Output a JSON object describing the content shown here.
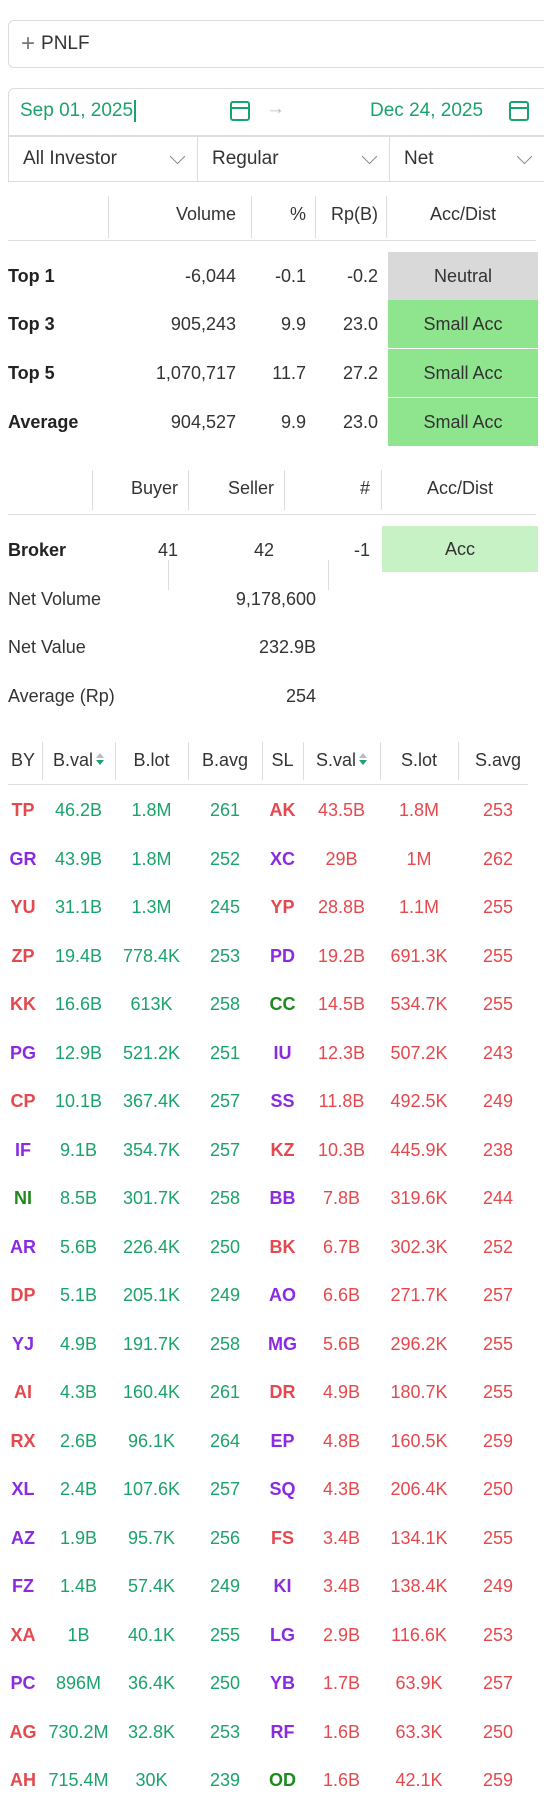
{
  "search": {
    "value": "PNLF",
    "plus_icon": "plus-icon"
  },
  "dates": {
    "start": "Sep 01, 2025",
    "end": "Dec 24, 2025"
  },
  "filters": [
    "All Investor",
    "Regular",
    "Net"
  ],
  "summary": {
    "headers": [
      "Volume",
      "%",
      "Rp(B)",
      "Acc/Dist"
    ],
    "rows": [
      {
        "label": "Top 1",
        "volume": "-6,044",
        "pct": "-0.1",
        "rp": "-0.2",
        "acc": "Neutral",
        "color": "#d9d9d9"
      },
      {
        "label": "Top 3",
        "volume": "905,243",
        "pct": "9.9",
        "rp": "23.0",
        "acc": "Small Acc",
        "color": "#8ee58e"
      },
      {
        "label": "Top 5",
        "volume": "1,070,717",
        "pct": "11.7",
        "rp": "27.2",
        "acc": "Small Acc",
        "color": "#8ee58e"
      },
      {
        "label": "Average",
        "volume": "904,527",
        "pct": "9.9",
        "rp": "23.0",
        "acc": "Small Acc",
        "color": "#8ee58e"
      }
    ]
  },
  "broker_summary": {
    "headers": [
      "Buyer",
      "Seller",
      "#",
      "Acc/Dist"
    ],
    "broker": {
      "label": "Broker",
      "buyer": "41",
      "seller": "42",
      "count": "-1",
      "acc": "Acc",
      "color": "#c6f2c6"
    },
    "net_volume": {
      "label": "Net Volume",
      "value": "9,178,600"
    },
    "net_value": {
      "label": "Net Value",
      "value": "232.9B"
    },
    "average": {
      "label": "Average (Rp)",
      "value": "254"
    }
  },
  "broker_table": {
    "headers": [
      "BY",
      "B.val",
      "B.lot",
      "B.avg",
      "SL",
      "S.val",
      "S.lot",
      "S.avg"
    ],
    "rows": [
      {
        "by": "TP",
        "by_color": "#e5484d",
        "bval": "46.2B",
        "blot": "1.8M",
        "bavg": "261",
        "sl": "AK",
        "sl_color": "#e5484d",
        "sval": "43.5B",
        "slot": "1.8M",
        "savg": "253"
      },
      {
        "by": "GR",
        "by_color": "#8a2be2",
        "bval": "43.9B",
        "blot": "1.8M",
        "bavg": "252",
        "sl": "XC",
        "sl_color": "#8a2be2",
        "sval": "29B",
        "slot": "1M",
        "savg": "262"
      },
      {
        "by": "YU",
        "by_color": "#e5484d",
        "bval": "31.1B",
        "blot": "1.3M",
        "bavg": "245",
        "sl": "YP",
        "sl_color": "#e5484d",
        "sval": "28.8B",
        "slot": "1.1M",
        "savg": "255"
      },
      {
        "by": "ZP",
        "by_color": "#e5484d",
        "bval": "19.4B",
        "blot": "778.4K",
        "bavg": "253",
        "sl": "PD",
        "sl_color": "#8a2be2",
        "sval": "19.2B",
        "slot": "691.3K",
        "savg": "255"
      },
      {
        "by": "KK",
        "by_color": "#e5484d",
        "bval": "16.6B",
        "blot": "613K",
        "bavg": "258",
        "sl": "CC",
        "sl_color": "#1e8a1e",
        "sval": "14.5B",
        "slot": "534.7K",
        "savg": "255"
      },
      {
        "by": "PG",
        "by_color": "#8a2be2",
        "bval": "12.9B",
        "blot": "521.2K",
        "bavg": "251",
        "sl": "IU",
        "sl_color": "#8a2be2",
        "sval": "12.3B",
        "slot": "507.2K",
        "savg": "243"
      },
      {
        "by": "CP",
        "by_color": "#e5484d",
        "bval": "10.1B",
        "blot": "367.4K",
        "bavg": "257",
        "sl": "SS",
        "sl_color": "#8a2be2",
        "sval": "11.8B",
        "slot": "492.5K",
        "savg": "249"
      },
      {
        "by": "IF",
        "by_color": "#8a2be2",
        "bval": "9.1B",
        "blot": "354.7K",
        "bavg": "257",
        "sl": "KZ",
        "sl_color": "#e5484d",
        "sval": "10.3B",
        "slot": "445.9K",
        "savg": "238"
      },
      {
        "by": "NI",
        "by_color": "#1e8a1e",
        "bval": "8.5B",
        "blot": "301.7K",
        "bavg": "258",
        "sl": "BB",
        "sl_color": "#8a2be2",
        "sval": "7.8B",
        "slot": "319.6K",
        "savg": "244"
      },
      {
        "by": "AR",
        "by_color": "#8a2be2",
        "bval": "5.6B",
        "blot": "226.4K",
        "bavg": "250",
        "sl": "BK",
        "sl_color": "#e5484d",
        "sval": "6.7B",
        "slot": "302.3K",
        "savg": "252"
      },
      {
        "by": "DP",
        "by_color": "#e5484d",
        "bval": "5.1B",
        "blot": "205.1K",
        "bavg": "249",
        "sl": "AO",
        "sl_color": "#8a2be2",
        "sval": "6.6B",
        "slot": "271.7K",
        "savg": "257"
      },
      {
        "by": "YJ",
        "by_color": "#8a2be2",
        "bval": "4.9B",
        "blot": "191.7K",
        "bavg": "258",
        "sl": "MG",
        "sl_color": "#8a2be2",
        "sval": "5.6B",
        "slot": "296.2K",
        "savg": "255"
      },
      {
        "by": "AI",
        "by_color": "#e5484d",
        "bval": "4.3B",
        "blot": "160.4K",
        "bavg": "261",
        "sl": "DR",
        "sl_color": "#e5484d",
        "sval": "4.9B",
        "slot": "180.7K",
        "savg": "255"
      },
      {
        "by": "RX",
        "by_color": "#e5484d",
        "bval": "2.6B",
        "blot": "96.1K",
        "bavg": "264",
        "sl": "EP",
        "sl_color": "#8a2be2",
        "sval": "4.8B",
        "slot": "160.5K",
        "savg": "259"
      },
      {
        "by": "XL",
        "by_color": "#8a2be2",
        "bval": "2.4B",
        "blot": "107.6K",
        "bavg": "257",
        "sl": "SQ",
        "sl_color": "#8a2be2",
        "sval": "4.3B",
        "slot": "206.4K",
        "savg": "250"
      },
      {
        "by": "AZ",
        "by_color": "#8a2be2",
        "bval": "1.9B",
        "blot": "95.7K",
        "bavg": "256",
        "sl": "FS",
        "sl_color": "#e5484d",
        "sval": "3.4B",
        "slot": "134.1K",
        "savg": "255"
      },
      {
        "by": "FZ",
        "by_color": "#8a2be2",
        "bval": "1.4B",
        "blot": "57.4K",
        "bavg": "249",
        "sl": "KI",
        "sl_color": "#8a2be2",
        "sval": "3.4B",
        "slot": "138.4K",
        "savg": "249"
      },
      {
        "by": "XA",
        "by_color": "#e5484d",
        "bval": "1B",
        "blot": "40.1K",
        "bavg": "255",
        "sl": "LG",
        "sl_color": "#8a2be2",
        "sval": "2.9B",
        "slot": "116.6K",
        "savg": "253"
      },
      {
        "by": "PC",
        "by_color": "#8a2be2",
        "bval": "896M",
        "blot": "36.4K",
        "bavg": "250",
        "sl": "YB",
        "sl_color": "#8a2be2",
        "sval": "1.7B",
        "slot": "63.9K",
        "savg": "257"
      },
      {
        "by": "AG",
        "by_color": "#e5484d",
        "bval": "730.2M",
        "blot": "32.8K",
        "bavg": "253",
        "sl": "RF",
        "sl_color": "#8a2be2",
        "sval": "1.6B",
        "slot": "63.3K",
        "savg": "250"
      },
      {
        "by": "AH",
        "by_color": "#e5484d",
        "bval": "715.4M",
        "blot": "30K",
        "bavg": "239",
        "sl": "OD",
        "sl_color": "#1e8a1e",
        "sval": "1.6B",
        "slot": "42.1K",
        "savg": "259"
      }
    ]
  }
}
